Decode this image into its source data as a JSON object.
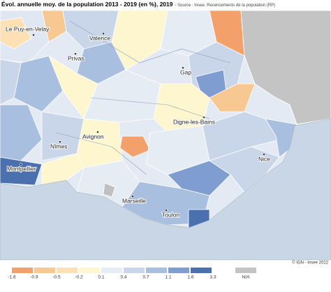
{
  "header": {
    "title": "Évol. annuelle moy. de la population 2013 - 2019 (en %), 2019",
    "source": "- Source : Insee, Recensements de la population (RP)"
  },
  "cities": [
    "Le Puy-en-Velay",
    "Valence",
    "Privas",
    "Gap",
    "Digne-les-Bains",
    "Avignon",
    "Nîmes",
    "Nice",
    "Montpellier",
    "Marseille",
    "Toulon"
  ],
  "legend": {
    "labels": [
      "-1.6",
      "-0.9",
      "-0.5",
      "-0.2",
      "0.1",
      "0.4",
      "0.7",
      "1.1",
      "1.6",
      "3.3"
    ],
    "na_label": "N/A"
  },
  "credit": "© IGN - Insee 2022"
}
